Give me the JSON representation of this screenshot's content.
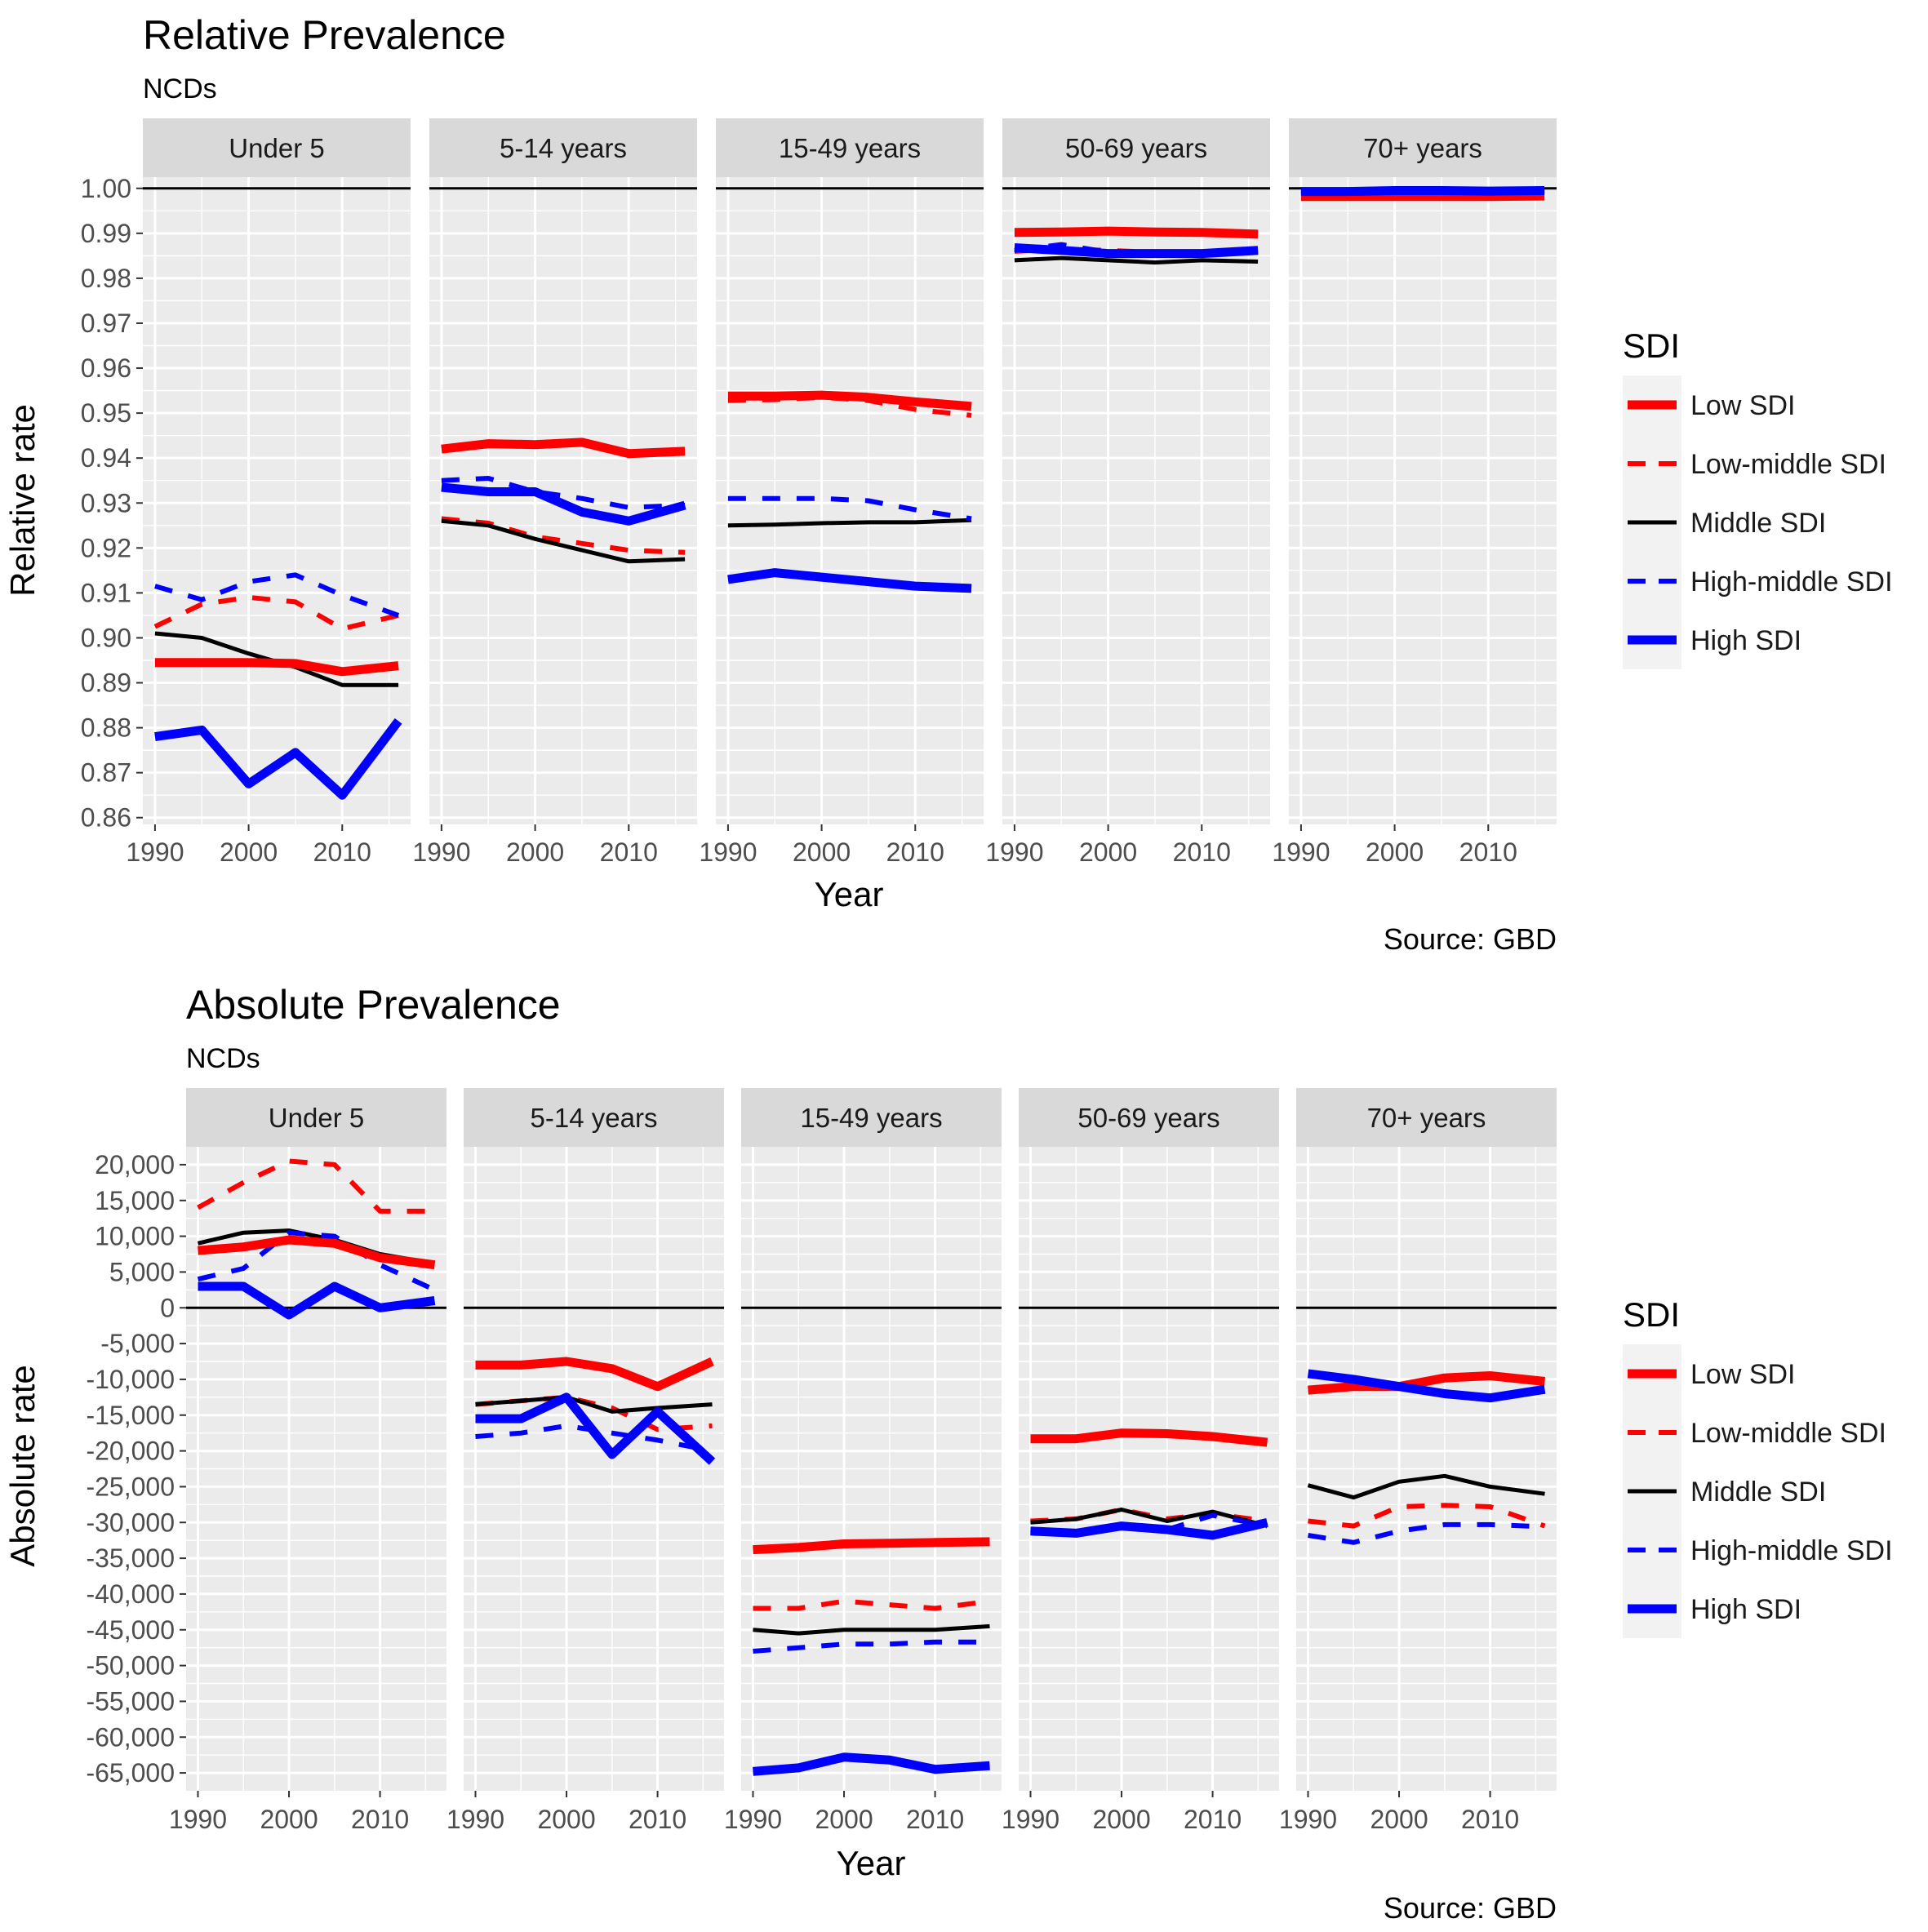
{
  "chart_data": [
    {
      "type": "line",
      "title": "Relative Prevalence",
      "subtitle": "NCDs",
      "xlabel": "Year",
      "ylabel": "Relative rate",
      "caption": "Source: GBD",
      "x_ticks": [
        1990,
        2000,
        2010
      ],
      "xlim": [
        1988.7,
        2017.3
      ],
      "ylim": [
        0.8585,
        1.0025
      ],
      "y_ticks": [
        0.86,
        0.87,
        0.88,
        0.89,
        0.9,
        0.91,
        0.92,
        0.93,
        0.94,
        0.95,
        0.96,
        0.97,
        0.98,
        0.99,
        1.0
      ],
      "y_tick_labels": [
        "0.86",
        "0.87",
        "0.88",
        "0.89",
        "0.90",
        "0.91",
        "0.92",
        "0.93",
        "0.94",
        "0.95",
        "0.96",
        "0.97",
        "0.98",
        "0.99",
        "1.00"
      ],
      "reference_line": 1.0,
      "grid": true,
      "legend_title": "SDI",
      "legend_position": "right",
      "x": [
        1990,
        1995,
        2000,
        2005,
        2010,
        2016
      ],
      "panels": [
        {
          "label": "Under 5",
          "series": [
            {
              "name": "Low SDI",
              "values": [
                0.8945,
                0.8945,
                0.8945,
                0.8943,
                0.8925,
                0.8938
              ]
            },
            {
              "name": "Low-middle SDI",
              "values": [
                0.9025,
                0.9075,
                0.909,
                0.908,
                0.902,
                0.905
              ]
            },
            {
              "name": "Middle SDI",
              "values": [
                0.901,
                0.9,
                0.8965,
                0.8935,
                0.8895,
                0.8895
              ]
            },
            {
              "name": "High-middle SDI",
              "values": [
                0.9115,
                0.9085,
                0.9125,
                0.914,
                0.9095,
                0.905
              ]
            },
            {
              "name": "High SDI",
              "values": [
                0.878,
                0.8795,
                0.8675,
                0.8745,
                0.865,
                0.8815
              ]
            }
          ]
        },
        {
          "label": "5-14 years",
          "series": [
            {
              "name": "Low SDI",
              "values": [
                0.942,
                0.9432,
                0.943,
                0.9435,
                0.941,
                0.9415
              ]
            },
            {
              "name": "Low-middle SDI",
              "values": [
                0.9265,
                0.9255,
                0.9225,
                0.921,
                0.9195,
                0.919
              ]
            },
            {
              "name": "Middle SDI",
              "values": [
                0.926,
                0.925,
                0.922,
                0.9195,
                0.917,
                0.9175
              ]
            },
            {
              "name": "High-middle SDI",
              "values": [
                0.935,
                0.9355,
                0.9325,
                0.931,
                0.929,
                0.9295
              ]
            },
            {
              "name": "High SDI",
              "values": [
                0.9335,
                0.9325,
                0.9325,
                0.928,
                0.926,
                0.9295
              ]
            }
          ]
        },
        {
          "label": "15-49 years",
          "series": [
            {
              "name": "Low SDI",
              "values": [
                0.9538,
                0.9538,
                0.954,
                0.9535,
                0.9525,
                0.9515
              ]
            },
            {
              "name": "Low-middle SDI",
              "values": [
                0.9528,
                0.953,
                0.9535,
                0.9528,
                0.9508,
                0.9495
              ]
            },
            {
              "name": "Middle SDI",
              "values": [
                0.925,
                0.9252,
                0.9255,
                0.9257,
                0.9257,
                0.9262
              ]
            },
            {
              "name": "High-middle SDI",
              "values": [
                0.931,
                0.931,
                0.931,
                0.9305,
                0.9285,
                0.9265
              ]
            },
            {
              "name": "High SDI",
              "values": [
                0.913,
                0.9145,
                0.9135,
                0.9125,
                0.9115,
                0.911
              ]
            }
          ]
        },
        {
          "label": "50-69 years",
          "series": [
            {
              "name": "Low SDI",
              "values": [
                0.9902,
                0.9903,
                0.9905,
                0.9903,
                0.9902,
                0.9898
              ]
            },
            {
              "name": "Low-middle SDI",
              "values": [
                0.986,
                0.9865,
                0.9862,
                0.9858,
                0.9858,
                0.9862
              ]
            },
            {
              "name": "Middle SDI",
              "values": [
                0.984,
                0.9845,
                0.984,
                0.9835,
                0.984,
                0.9837
              ]
            },
            {
              "name": "High-middle SDI",
              "values": [
                0.9862,
                0.9875,
                0.9858,
                0.9855,
                0.9852,
                0.986
              ]
            },
            {
              "name": "High SDI",
              "values": [
                0.9868,
                0.9862,
                0.9855,
                0.9855,
                0.9855,
                0.9862
              ]
            }
          ]
        },
        {
          "label": "70+ years",
          "series": [
            {
              "name": "Low SDI",
              "values": [
                0.9982,
                0.9982,
                0.9982,
                0.9982,
                0.9982,
                0.9983
              ]
            },
            {
              "name": "Low-middle SDI",
              "values": [
                0.999,
                0.999,
                0.9991,
                0.9991,
                0.999,
                0.999
              ]
            },
            {
              "name": "Middle SDI",
              "values": [
                0.9992,
                0.9992,
                0.9993,
                0.9993,
                0.9993,
                0.9993
              ]
            },
            {
              "name": "High-middle SDI",
              "values": [
                0.9994,
                0.9995,
                0.9996,
                0.9996,
                0.9995,
                0.9995
              ]
            },
            {
              "name": "High SDI",
              "values": [
                0.9993,
                0.9993,
                0.9995,
                0.9995,
                0.9994,
                0.9995
              ]
            }
          ]
        }
      ]
    },
    {
      "type": "line",
      "title": "Absolute Prevalence",
      "subtitle": "NCDs",
      "xlabel": "Year",
      "ylabel": "Absolute rate",
      "caption": "Source: GBD",
      "x_ticks": [
        1990,
        2000,
        2010
      ],
      "xlim": [
        1988.7,
        2017.3
      ],
      "ylim": [
        -67500,
        22500
      ],
      "y_ticks": [
        -65000,
        -60000,
        -55000,
        -50000,
        -45000,
        -40000,
        -35000,
        -30000,
        -25000,
        -20000,
        -15000,
        -10000,
        -5000,
        0,
        5000,
        10000,
        15000,
        20000
      ],
      "y_tick_labels": [
        "-65,000",
        "-60,000",
        "-55,000",
        "-50,000",
        "-45,000",
        "-40,000",
        "-35,000",
        "-30,000",
        "-25,000",
        "-20,000",
        "-15,000",
        "-10,000",
        "-5,000",
        "0",
        "5,000",
        "10,000",
        "15,000",
        "20,000"
      ],
      "reference_line": 0,
      "grid": true,
      "legend_title": "SDI",
      "legend_position": "right",
      "x": [
        1990,
        1995,
        2000,
        2005,
        2010,
        2016
      ],
      "panels": [
        {
          "label": "Under 5",
          "series": [
            {
              "name": "Low SDI",
              "values": [
                8000,
                8500,
                9500,
                9000,
                7000,
                6000
              ]
            },
            {
              "name": "Low-middle SDI",
              "values": [
                14000,
                17500,
                20500,
                20000,
                13500,
                13500
              ]
            },
            {
              "name": "Middle SDI",
              "values": [
                9000,
                10500,
                10800,
                9500,
                7500,
                6200
              ]
            },
            {
              "name": "High-middle SDI",
              "values": [
                4000,
                5500,
                10500,
                10000,
                6000,
                2500
              ]
            },
            {
              "name": "High SDI",
              "values": [
                3000,
                3000,
                -1000,
                3000,
                0,
                1000
              ]
            }
          ]
        },
        {
          "label": "5-14 years",
          "series": [
            {
              "name": "Low SDI",
              "values": [
                -8000,
                -8000,
                -7500,
                -8500,
                -11000,
                -7500
              ]
            },
            {
              "name": "Low-middle SDI",
              "values": [
                -13500,
                -13000,
                -12500,
                -14000,
                -17000,
                -16500
              ]
            },
            {
              "name": "Middle SDI",
              "values": [
                -13500,
                -13000,
                -12500,
                -14500,
                -14000,
                -13500
              ]
            },
            {
              "name": "High-middle SDI",
              "values": [
                -18000,
                -17500,
                -16500,
                -17500,
                -18500,
                -20000
              ]
            },
            {
              "name": "High SDI",
              "values": [
                -15500,
                -15500,
                -12500,
                -20500,
                -14500,
                -21500
              ]
            }
          ]
        },
        {
          "label": "15-49 years",
          "series": [
            {
              "name": "Low SDI",
              "values": [
                -33800,
                -33500,
                -33000,
                -32900,
                -32800,
                -32700
              ]
            },
            {
              "name": "Low-middle SDI",
              "values": [
                -42000,
                -42000,
                -41000,
                -41500,
                -42000,
                -41000
              ]
            },
            {
              "name": "Middle SDI",
              "values": [
                -45000,
                -45500,
                -45000,
                -45000,
                -45000,
                -44500
              ]
            },
            {
              "name": "High-middle SDI",
              "values": [
                -48000,
                -47500,
                -47000,
                -47000,
                -46700,
                -46700
              ]
            },
            {
              "name": "High SDI",
              "values": [
                -64800,
                -64300,
                -62800,
                -63200,
                -64500,
                -64000
              ]
            }
          ]
        },
        {
          "label": "50-69 years",
          "series": [
            {
              "name": "Low SDI",
              "values": [
                -18300,
                -18300,
                -17500,
                -17600,
                -18000,
                -18800
              ]
            },
            {
              "name": "Low-middle SDI",
              "values": [
                -29800,
                -29500,
                -28200,
                -29500,
                -28800,
                -29800
              ]
            },
            {
              "name": "Middle SDI",
              "values": [
                -30000,
                -29500,
                -28200,
                -29800,
                -28500,
                -30500
              ]
            },
            {
              "name": "High-middle SDI",
              "values": [
                -31000,
                -31500,
                -30500,
                -31000,
                -29000,
                -30500
              ]
            },
            {
              "name": "High SDI",
              "values": [
                -31200,
                -31500,
                -30500,
                -31000,
                -31800,
                -30000
              ]
            }
          ]
        },
        {
          "label": "70+ years",
          "series": [
            {
              "name": "Low SDI",
              "values": [
                -11500,
                -11000,
                -11000,
                -9800,
                -9500,
                -10300
              ]
            },
            {
              "name": "Low-middle SDI",
              "values": [
                -29800,
                -30500,
                -27800,
                -27600,
                -27800,
                -30500
              ]
            },
            {
              "name": "Middle SDI",
              "values": [
                -24800,
                -26500,
                -24300,
                -23500,
                -25000,
                -26000
              ]
            },
            {
              "name": "High-middle SDI",
              "values": [
                -31800,
                -32800,
                -31200,
                -30300,
                -30300,
                -30600
              ]
            },
            {
              "name": "High SDI",
              "values": [
                -9200,
                -10000,
                -11000,
                -12000,
                -12600,
                -11400
              ]
            }
          ]
        }
      ]
    }
  ],
  "legend": {
    "title": "SDI",
    "items": [
      {
        "name": "Low SDI",
        "color": "#ff0000",
        "style": "solid-thick"
      },
      {
        "name": "Low-middle SDI",
        "color": "#ff0000",
        "style": "dashed"
      },
      {
        "name": "Middle SDI",
        "color": "#000000",
        "style": "solid-thin"
      },
      {
        "name": "High-middle SDI",
        "color": "#0000ff",
        "style": "dashed"
      },
      {
        "name": "High SDI",
        "color": "#0000ff",
        "style": "solid-thick"
      }
    ]
  },
  "colors": {
    "panel_background": "#ebebeb",
    "grid": "#ffffff",
    "strip_background": "#d9d9d9",
    "reference_line": "#000000"
  }
}
